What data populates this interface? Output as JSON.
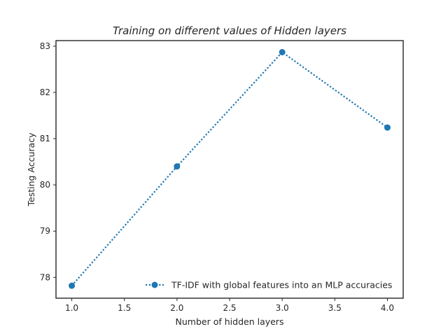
{
  "chart_data": {
    "type": "line",
    "title": "Training on different values of Hidden layers",
    "xlabel": "Number of hidden layers",
    "ylabel": "Testing Accuracy",
    "xlim": [
      0.85,
      4.15
    ],
    "ylim": [
      77.55,
      83.12
    ],
    "xticks": [
      1.0,
      1.5,
      2.0,
      2.5,
      3.0,
      3.5,
      4.0
    ],
    "xtick_labels": [
      "1.0",
      "1.5",
      "2.0",
      "2.5",
      "3.0",
      "3.5",
      "4.0"
    ],
    "yticks": [
      78,
      79,
      80,
      81,
      82,
      83
    ],
    "ytick_labels": [
      "78",
      "79",
      "80",
      "81",
      "82",
      "83"
    ],
    "grid": false,
    "legend_position": "lower-right",
    "series": [
      {
        "name": "TF-IDF with global features into an MLP accuracies",
        "x": [
          1.0,
          2.0,
          3.0,
          4.0
        ],
        "y": [
          77.82,
          80.4,
          82.87,
          81.24
        ],
        "color": "#1f77b4",
        "line_style": "dotted",
        "marker": "circle"
      }
    ]
  }
}
